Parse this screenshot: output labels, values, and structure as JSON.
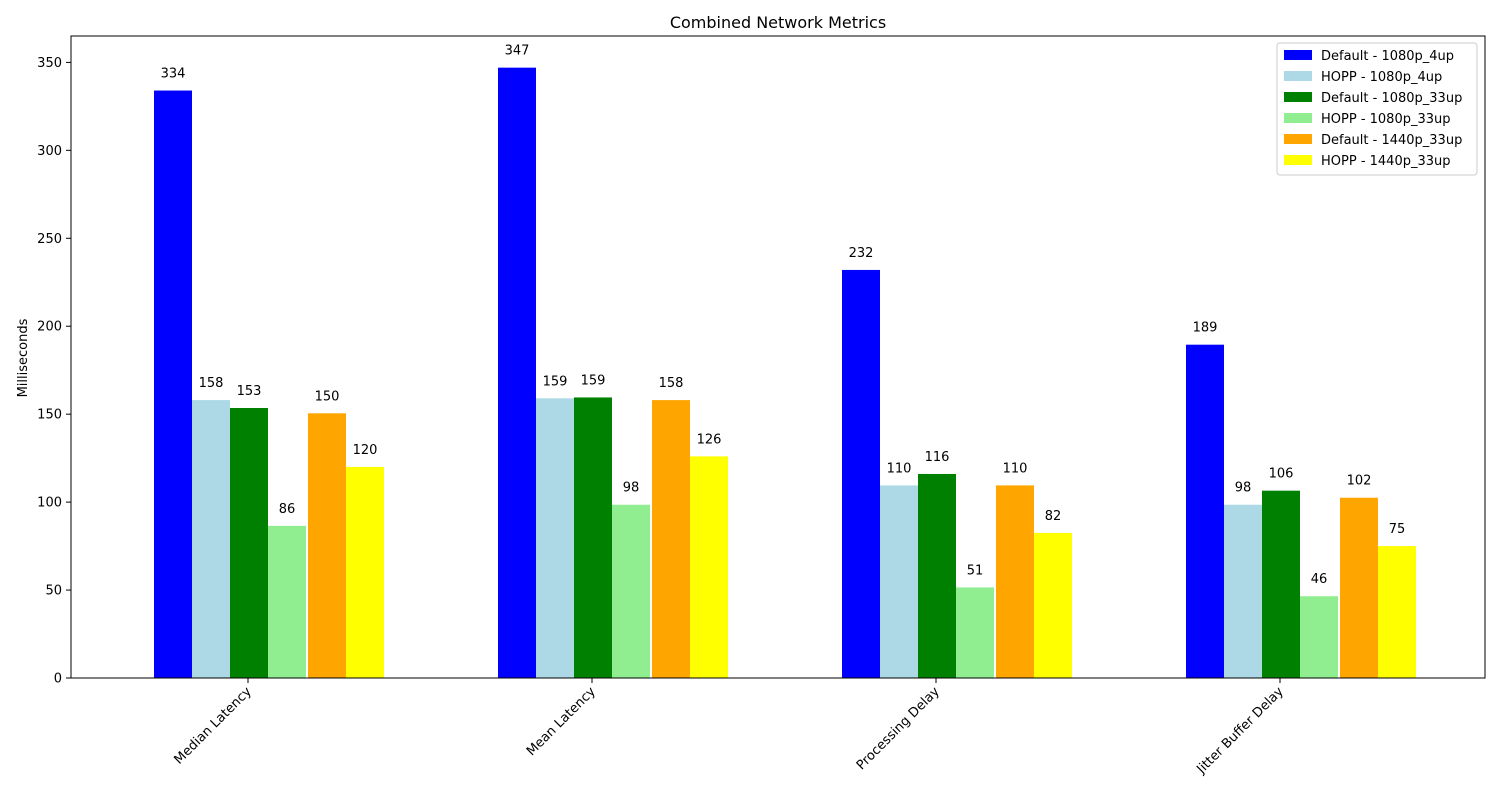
{
  "chart_data": {
    "type": "bar",
    "title": "Combined Network Metrics",
    "xlabel": "",
    "ylabel": "Milliseconds",
    "ylim": [
      0,
      365
    ],
    "yticks": [
      0,
      50,
      100,
      150,
      200,
      250,
      300,
      350
    ],
    "categories": [
      "Median Latency",
      "Mean Latency",
      "Processing Delay",
      "Jitter Buffer Delay"
    ],
    "series": [
      {
        "name": "Default - 1080p_4up",
        "color": "#0000ff",
        "values": [
          334,
          347,
          232,
          189.5
        ]
      },
      {
        "name": "HOPP - 1080p_4up",
        "color": "#add8e6",
        "values": [
          158,
          159,
          109.5,
          98.5
        ]
      },
      {
        "name": "Default - 1080p_33up",
        "color": "#008000",
        "values": [
          153.5,
          159.5,
          116,
          106.5
        ]
      },
      {
        "name": "HOPP - 1080p_33up",
        "color": "#90ee90",
        "values": [
          86.5,
          98.5,
          51.5,
          46.5
        ]
      },
      {
        "name": "Default - 1440p_33up",
        "color": "#ffa500",
        "values": [
          150.5,
          158,
          109.5,
          102.5
        ]
      },
      {
        "name": "HOPP - 1440p_33up",
        "color": "#ffff00",
        "values": [
          120,
          126,
          82.5,
          75
        ]
      }
    ],
    "data_labels": [
      [
        "334",
        "347",
        "232",
        "189"
      ],
      [
        "158",
        "159",
        "110",
        "98"
      ],
      [
        "153",
        "159",
        "116",
        "106"
      ],
      [
        "86",
        "98",
        "51",
        "46"
      ],
      [
        "150",
        "158",
        "110",
        "102"
      ],
      [
        "120",
        "126",
        "82",
        "75"
      ]
    ],
    "legend_position": "top-right",
    "grid": false
  }
}
